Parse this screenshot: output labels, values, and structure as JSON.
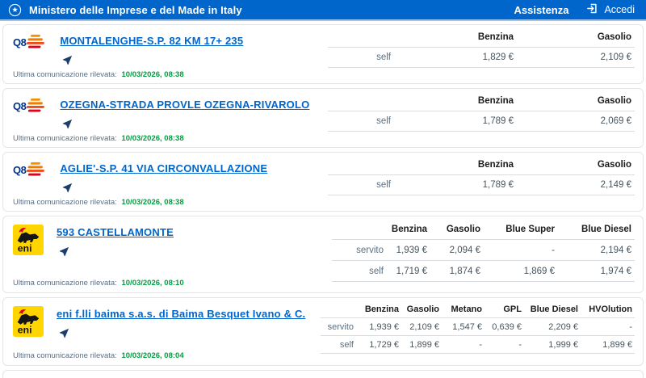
{
  "header": {
    "title": "Ministero delle Imprese e del Made in Italy",
    "assistenza": "Assistenza",
    "accedi": "Accedi"
  },
  "labels": {
    "last_communication": "Ultima comunicazione rilevata:"
  },
  "icons": {
    "emblem": "italy-republic-emblem-icon",
    "login": "login-arrow-icon",
    "navigate": "location-arrow-icon"
  },
  "colors": {
    "header_bg": "#0066cc",
    "header_underline": "#9dc2ea",
    "link_blue": "#0066cc",
    "date_green": "#00a040",
    "nav_arrow_blue": "#1c3e6e",
    "q8_navy": "#00338d",
    "q8_orange": "#f07d00",
    "q8_red": "#e2001a",
    "eni_yellow": "#ffd500"
  },
  "stations": [
    {
      "brand": "q8",
      "name": "MONTALENGHE-S.P. 82 KM 17+ 235",
      "last_communication": "10/03/2026, 08:38",
      "fuel_columns": [
        "Benzina",
        "Gasolio"
      ],
      "price_rows": [
        {
          "service": "self",
          "values": [
            "1,829 €",
            "2,109 €"
          ]
        }
      ]
    },
    {
      "brand": "q8",
      "name": "OZEGNA-STRADA PROVLE OZEGNA-RIVAROLO",
      "last_communication": "10/03/2026, 08:38",
      "fuel_columns": [
        "Benzina",
        "Gasolio"
      ],
      "price_rows": [
        {
          "service": "self",
          "values": [
            "1,789 €",
            "2,069 €"
          ]
        }
      ]
    },
    {
      "brand": "q8",
      "name": "AGLIE'-S.P. 41 VIA CIRCONVALLAZIONE",
      "last_communication": "10/03/2026, 08:38",
      "fuel_columns": [
        "Benzina",
        "Gasolio"
      ],
      "price_rows": [
        {
          "service": "self",
          "values": [
            "1,789 €",
            "2,149 €"
          ]
        }
      ]
    },
    {
      "brand": "eni",
      "name": "593 CASTELLAMONTE",
      "last_communication": "10/03/2026, 08:10",
      "fuel_columns": [
        "Benzina",
        "Gasolio",
        "Blue Super",
        "Blue Diesel"
      ],
      "price_rows": [
        {
          "service": "servito",
          "values": [
            "1,939 €",
            "2,094 €",
            "-",
            "2,194 €"
          ]
        },
        {
          "service": "self",
          "values": [
            "1,719 €",
            "1,874 €",
            "1,869 €",
            "1,974 €"
          ]
        }
      ]
    },
    {
      "brand": "eni",
      "name": "eni f.lli baima s.a.s. di Baima Besquet Ivano & C.",
      "last_communication": "10/03/2026, 08:04",
      "fuel_columns": [
        "Benzina",
        "Gasolio",
        "Metano",
        "GPL",
        "Blue Diesel",
        "HVOlution"
      ],
      "price_rows": [
        {
          "service": "servito",
          "values": [
            "1,939 €",
            "2,109 €",
            "1,547 €",
            "0,639 €",
            "2,209 €",
            "-"
          ]
        },
        {
          "service": "self",
          "values": [
            "1,729 €",
            "1,899 €",
            "-",
            "-",
            "1,999 €",
            "1,899 €"
          ]
        }
      ]
    }
  ]
}
